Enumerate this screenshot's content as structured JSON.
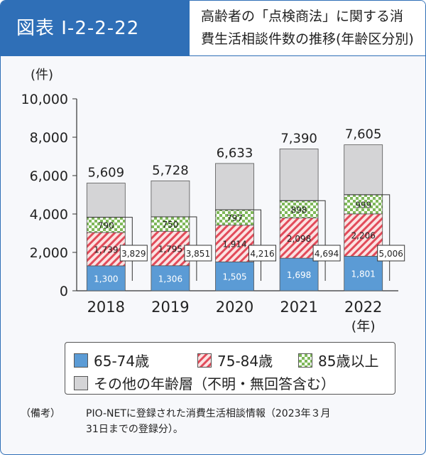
{
  "figure_tag": "図表 I-2-2-22",
  "title_line1": "高齢者の「点検商法」に関する消",
  "title_line2": "費生活相談件数の推移(年齢区分別)",
  "colors": {
    "frame": "#2f6fb7",
    "age_65_74": "#5b9bd5",
    "age_75_84_fill": "#fbe3e3",
    "age_75_84_stripe": "#e24b5a",
    "age_85_plus_fill": "#ffffff",
    "age_85_plus_check": "#7fb85a",
    "other": "#d4d4d6"
  },
  "chart_data": {
    "type": "bar",
    "stacked": true,
    "ylabel": "(件)",
    "xlabel_unit": "(年)",
    "ylim": [
      0,
      10000
    ],
    "yticks": [
      "0",
      "2,000",
      "4,000",
      "6,000",
      "8,000",
      "10,000"
    ],
    "categories": [
      "2018",
      "2019",
      "2020",
      "2021",
      "2022"
    ],
    "series": [
      {
        "name": "65-74歳",
        "values": [
          1300,
          1306,
          1505,
          1698,
          1801
        ],
        "labels": [
          "1,300",
          "1,306",
          "1,505",
          "1,698",
          "1,801"
        ]
      },
      {
        "name": "75-84歳",
        "values": [
          1739,
          1795,
          1914,
          2098,
          2206
        ],
        "labels": [
          "1,739",
          "1,795",
          "1,914",
          "2,098",
          "2,206"
        ]
      },
      {
        "name": "85歳以上",
        "values": [
          790,
          750,
          797,
          898,
          999
        ],
        "labels": [
          "790",
          "750",
          "797",
          "898",
          "999"
        ]
      },
      {
        "name": "その他の年齢層（不明・無回答含む）",
        "values": [
          1780,
          1877,
          2417,
          2696,
          2599
        ]
      }
    ],
    "totals": [
      "5,609",
      "5,728",
      "6,633",
      "7,390",
      "7,605"
    ],
    "subtotals_65_plus": [
      "3,829",
      "3,851",
      "4,216",
      "4,694",
      "5,006"
    ],
    "legend": [
      "65-74歳",
      "75-84歳",
      "85歳以上",
      "その他の年齢層（不明・無回答含む）"
    ]
  },
  "note": {
    "label": "（備考）",
    "line1": "PIO-NETに登録された消費生活相談情報（2023年３月",
    "line2": "31日までの登録分）。"
  }
}
